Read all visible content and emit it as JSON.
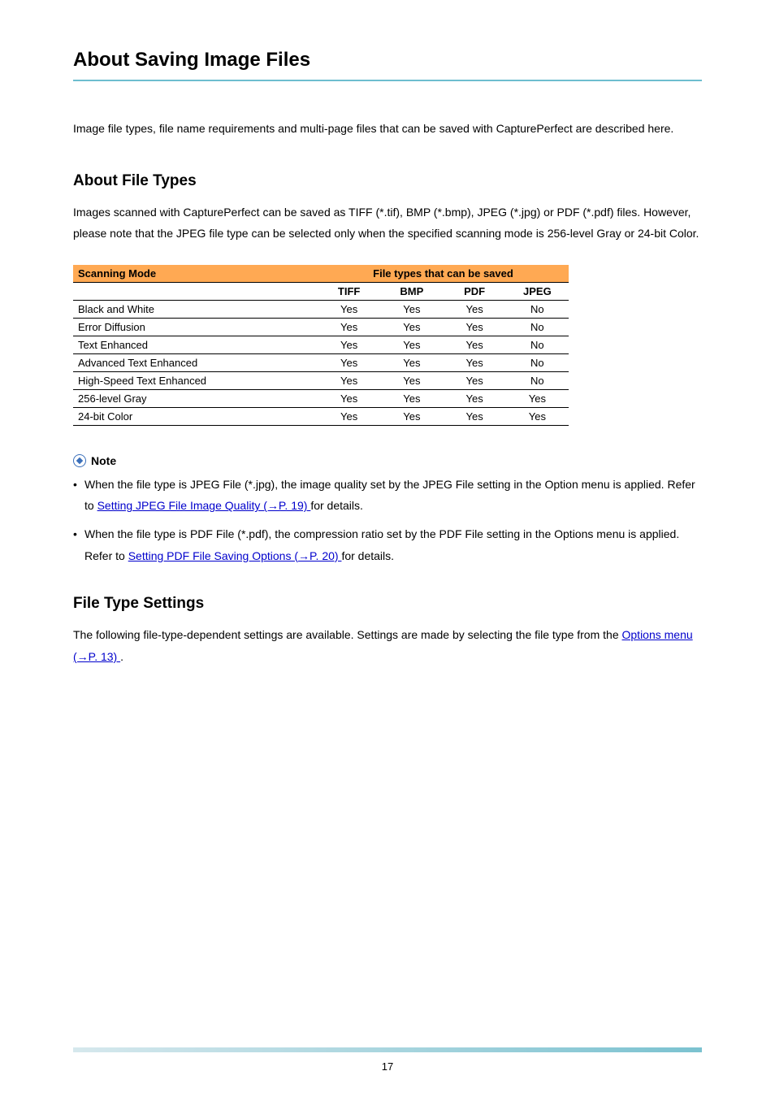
{
  "page": {
    "title": "About Saving Image Files",
    "intro": "Image file types, file name requirements and multi-page files that can be saved with CapturePerfect are described here.",
    "section1": {
      "heading": "About File Types",
      "para": "Images scanned with CapturePerfect can be saved as TIFF (*.tif), BMP (*.bmp), JPEG (*.jpg) or PDF (*.pdf) files. However, please note that the JPEG file type can be selected only when the specified scanning mode is 256-level Gray or 24-bit Color."
    },
    "table": {
      "h_scan": "Scanning Mode",
      "h_saved": "File types that can be saved",
      "c_tiff": "TIFF",
      "c_bmp": "BMP",
      "c_pdf": "PDF",
      "c_jpeg": "JPEG",
      "rows": [
        {
          "mode": "Black and White",
          "tiff": "Yes",
          "bmp": "Yes",
          "pdf": "Yes",
          "jpeg": "No"
        },
        {
          "mode": "Error Diffusion",
          "tiff": "Yes",
          "bmp": "Yes",
          "pdf": "Yes",
          "jpeg": "No"
        },
        {
          "mode": "Text Enhanced",
          "tiff": "Yes",
          "bmp": "Yes",
          "pdf": "Yes",
          "jpeg": "No"
        },
        {
          "mode": "Advanced Text Enhanced",
          "tiff": "Yes",
          "bmp": "Yes",
          "pdf": "Yes",
          "jpeg": "No"
        },
        {
          "mode": "High-Speed Text Enhanced",
          "tiff": "Yes",
          "bmp": "Yes",
          "pdf": "Yes",
          "jpeg": "No"
        },
        {
          "mode": "256-level Gray",
          "tiff": "Yes",
          "bmp": "Yes",
          "pdf": "Yes",
          "jpeg": "Yes"
        },
        {
          "mode": "24-bit Color",
          "tiff": "Yes",
          "bmp": "Yes",
          "pdf": "Yes",
          "jpeg": "Yes"
        }
      ]
    },
    "note": {
      "label": "Note",
      "item1_pre": "When the file type is JPEG File (*.jpg), the image quality set by the JPEG File setting in the Option menu is applied. Refer to ",
      "item1_link": "Setting JPEG File Image Quality (→P. 19) ",
      "item1_post": " for details.",
      "item2_pre": "When the file type is PDF File (*.pdf), the compression ratio set by the PDF File setting in the Options menu is applied. Refer to ",
      "item2_link": "Setting PDF File Saving Options (→P. 20) ",
      "item2_post": " for details."
    },
    "section2": {
      "heading": "File Type Settings",
      "para_pre": "The following file-type-dependent settings are available. Settings are made by selecting the file type from the ",
      "para_link": "Options menu (→P. 13) ",
      "para_post": "."
    },
    "footer_pagenum": "17"
  }
}
